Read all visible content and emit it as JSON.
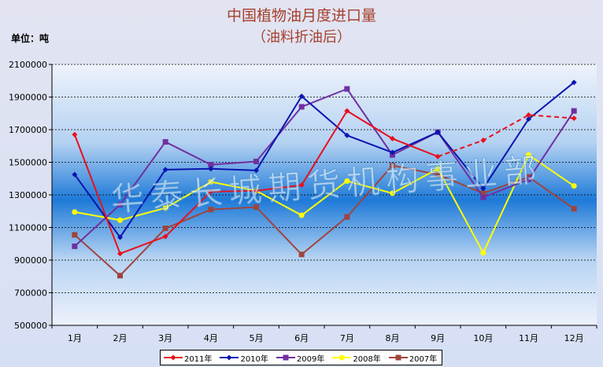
{
  "chart_data": {
    "type": "line",
    "title": "中国植物油月度进口量",
    "subtitle": "（油料折油后）",
    "unit_label": "单位：吨",
    "watermark": "华泰长城期货机构事业部",
    "categories": [
      "1月",
      "2月",
      "3月",
      "4月",
      "5月",
      "6月",
      "7月",
      "8月",
      "9月",
      "10月",
      "11月",
      "12月"
    ],
    "ylim": [
      500000,
      2100000
    ],
    "yticks": [
      500000,
      700000,
      900000,
      1100000,
      1300000,
      1500000,
      1700000,
      1900000,
      2100000
    ],
    "ytick_labels": [
      "500000",
      "700000",
      "900000",
      "1100000",
      "1300000",
      "1500000",
      "1700000",
      "1900000",
      "2100000"
    ],
    "grid": true,
    "legend_position": "bottom",
    "series": [
      {
        "name": "2011年",
        "color": "#e8101c",
        "marker": "diamond",
        "values": [
          1670000,
          940000,
          1045000,
          1320000,
          1325000,
          1360000,
          1815000,
          1645000,
          1535000,
          1635000,
          1790000,
          1770000
        ],
        "dashed_from_index": 8
      },
      {
        "name": "2010年",
        "color": "#0a14b0",
        "marker": "diamond",
        "values": [
          1425000,
          1040000,
          1455000,
          1460000,
          1450000,
          1905000,
          1665000,
          1560000,
          1685000,
          1340000,
          1765000,
          1990000
        ]
      },
      {
        "name": "2009年",
        "color": "#7030a0",
        "marker": "square",
        "values": [
          985000,
          1240000,
          1625000,
          1485000,
          1505000,
          1840000,
          1950000,
          1545000,
          1685000,
          1285000,
          1395000,
          1815000
        ]
      },
      {
        "name": "2008年",
        "color": "#ffff00",
        "marker": "circle",
        "values": [
          1195000,
          1145000,
          1220000,
          1380000,
          1325000,
          1175000,
          1385000,
          1310000,
          1460000,
          945000,
          1545000,
          1355000
        ]
      },
      {
        "name": "2007年",
        "color": "#a0443c",
        "marker": "square",
        "values": [
          1055000,
          805000,
          1095000,
          1210000,
          1225000,
          935000,
          1165000,
          1480000,
          1425000,
          1310000,
          1410000,
          1215000
        ]
      }
    ]
  }
}
